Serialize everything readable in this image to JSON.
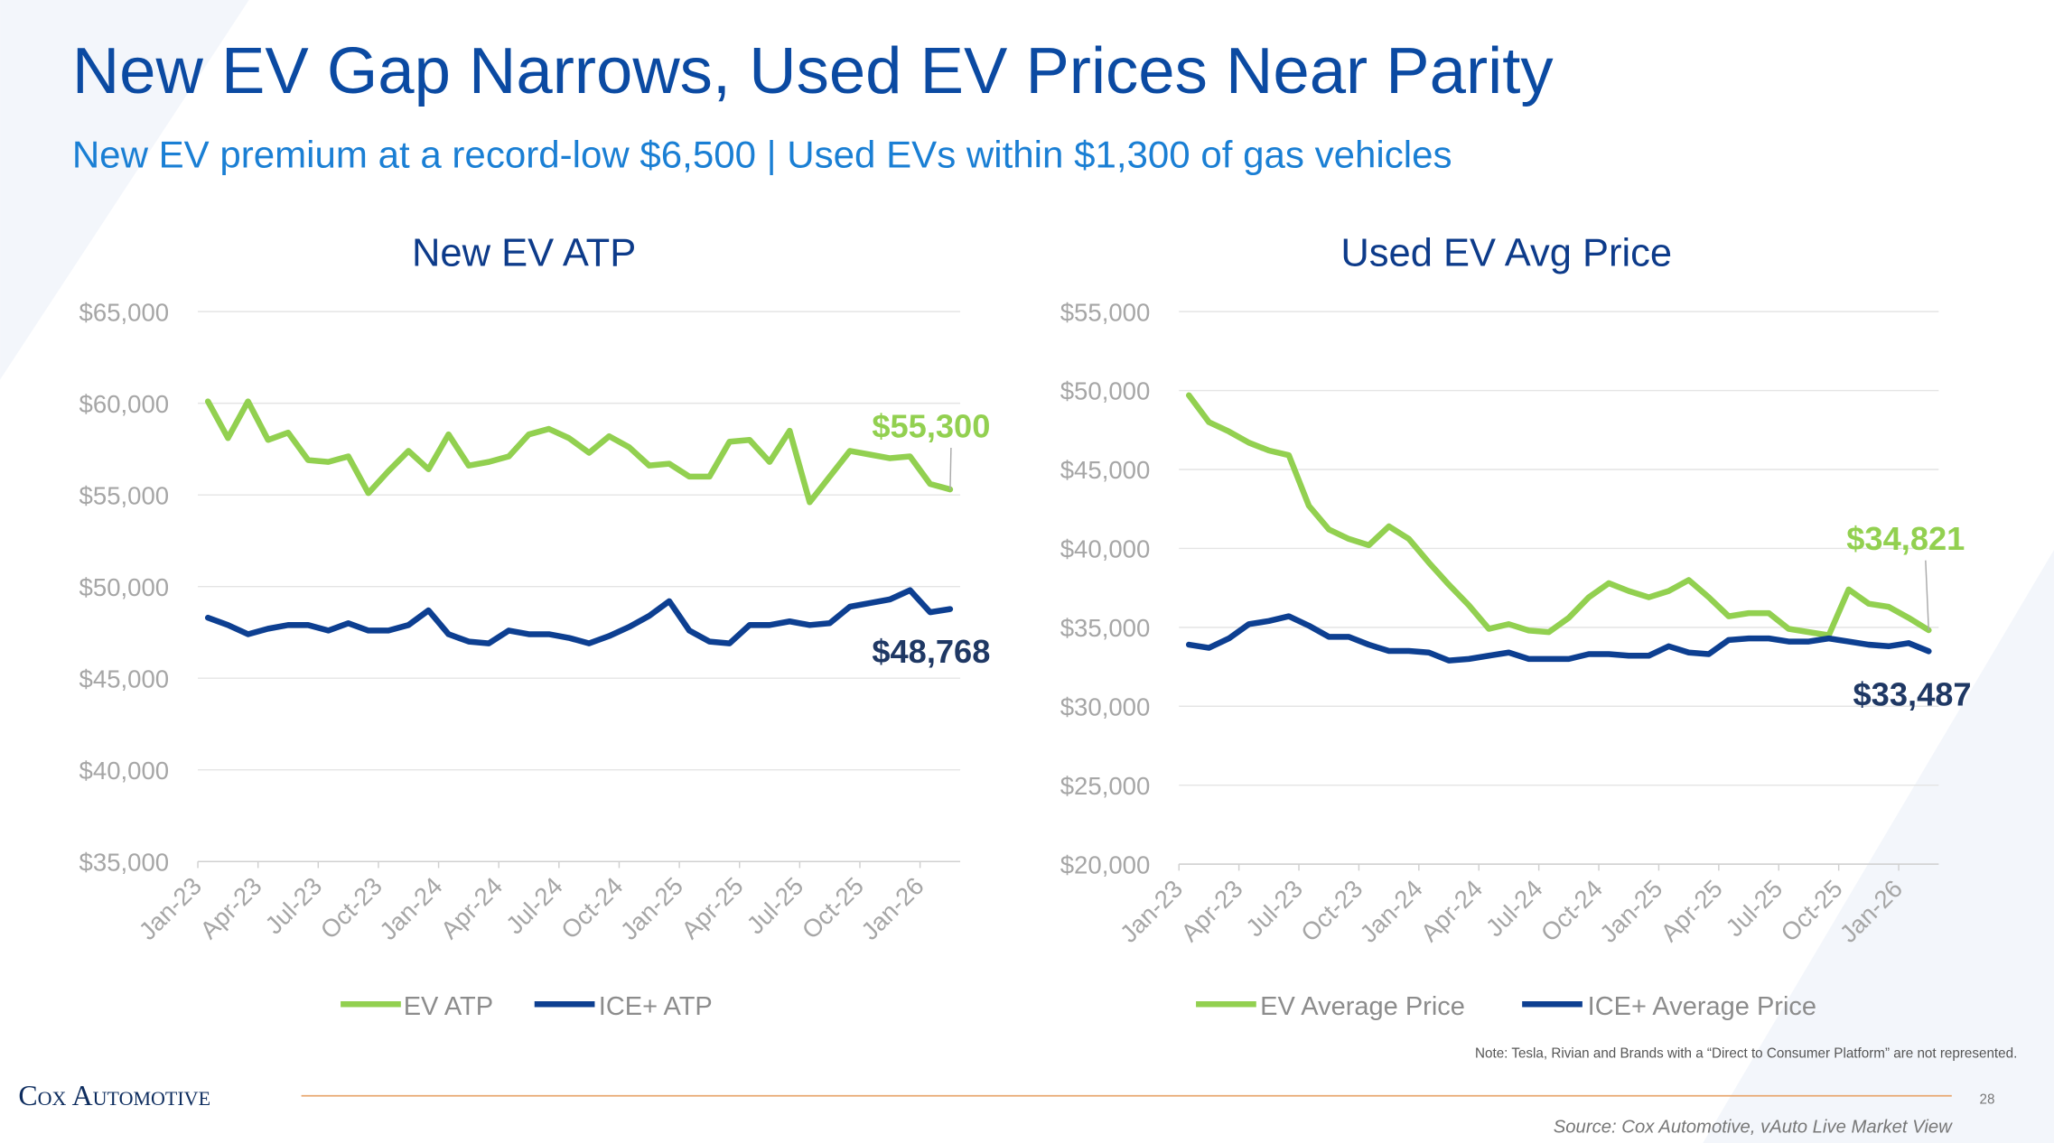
{
  "title": "New EV Gap Narrows, Used EV Prices Near Parity",
  "subtitle": "New EV premium at a record-low $6,500 | Used EVs within $1,300 of gas vehicles",
  "note": "Note: Tesla, Rivian and Brands with a “Direct to Consumer Platform” are not represented.",
  "logo": "Cox Automotive",
  "page_number": "28",
  "source": "Source: Cox Automotive, vAuto Live Market View",
  "chart_data": [
    {
      "type": "line",
      "title": "New EV ATP",
      "categories": [
        "Jan-23",
        null,
        null,
        "Apr-23",
        null,
        null,
        "Jul-23",
        null,
        null,
        "Oct-23",
        null,
        null,
        "Jan-24",
        null,
        null,
        "Apr-24",
        null,
        null,
        "Jul-24",
        null,
        null,
        "Oct-24",
        null,
        null,
        "Jan-25",
        null,
        null,
        "Apr-25",
        null,
        null,
        "Jul-25",
        null,
        null,
        "Oct-25",
        null,
        null,
        "Jan-26",
        null
      ],
      "ylim": [
        35000,
        65000
      ],
      "yticks": [
        {
          "value": 35000,
          "label": "$35,000"
        },
        {
          "value": 40000,
          "label": "$40,000"
        },
        {
          "value": 45000,
          "label": "$45,000"
        },
        {
          "value": 50000,
          "label": "$50,000"
        },
        {
          "value": 55000,
          "label": "$55,000"
        },
        {
          "value": 60000,
          "label": "$60,000"
        },
        {
          "value": 65000,
          "label": "$65,000"
        }
      ],
      "grid": true,
      "series": [
        {
          "name": "EV ATP",
          "color": "#92d050",
          "values": [
            60100,
            58100,
            60100,
            58000,
            58400,
            56900,
            56800,
            57100,
            55100,
            56300,
            57400,
            56400,
            58300,
            56600,
            56800,
            57100,
            58300,
            58600,
            58100,
            57300,
            58200,
            57600,
            56600,
            56700,
            56000,
            56000,
            57900,
            58000,
            56800,
            58500,
            54600,
            56000,
            57400,
            57200,
            57000,
            57100,
            55600,
            55300
          ],
          "value_labels": [
            null,
            null,
            null,
            null,
            null,
            null,
            null,
            null,
            null,
            null,
            null,
            null,
            null,
            null,
            null,
            null,
            null,
            null,
            null,
            null,
            null,
            null,
            null,
            null,
            null,
            null,
            null,
            null,
            null,
            null,
            null,
            null,
            null,
            null,
            null,
            null,
            null,
            "$55,300"
          ]
        },
        {
          "name": "ICE+ ATP",
          "color": "#0d3f91",
          "values": [
            48300,
            47900,
            47400,
            47700,
            47900,
            47900,
            47600,
            48000,
            47600,
            47600,
            47900,
            48700,
            47400,
            47000,
            46900,
            47600,
            47400,
            47400,
            47200,
            46900,
            47300,
            47800,
            48400,
            49200,
            47600,
            47000,
            46900,
            47900,
            47900,
            48100,
            47900,
            48000,
            48900,
            49100,
            49300,
            49800,
            48600,
            48768
          ],
          "value_labels": [
            null,
            null,
            null,
            null,
            null,
            null,
            null,
            null,
            null,
            null,
            null,
            null,
            null,
            null,
            null,
            null,
            null,
            null,
            null,
            null,
            null,
            null,
            null,
            null,
            null,
            null,
            null,
            null,
            null,
            null,
            null,
            null,
            null,
            null,
            null,
            null,
            null,
            "$48,768"
          ]
        }
      ]
    },
    {
      "type": "line",
      "title": "Used EV Avg Price",
      "categories": [
        "Jan-23",
        null,
        null,
        "Apr-23",
        null,
        null,
        "Jul-23",
        null,
        null,
        "Oct-23",
        null,
        null,
        "Jan-24",
        null,
        null,
        "Apr-24",
        null,
        null,
        "Jul-24",
        null,
        null,
        "Oct-24",
        null,
        null,
        "Jan-25",
        null,
        null,
        "Apr-25",
        null,
        null,
        "Jul-25",
        null,
        null,
        "Oct-25",
        null,
        null,
        "Jan-26",
        null
      ],
      "ylim": [
        20000,
        55000
      ],
      "yticks": [
        {
          "value": 20000,
          "label": "$20,000"
        },
        {
          "value": 25000,
          "label": "$25,000"
        },
        {
          "value": 30000,
          "label": "$30,000"
        },
        {
          "value": 35000,
          "label": "$35,000"
        },
        {
          "value": 40000,
          "label": "$40,000"
        },
        {
          "value": 45000,
          "label": "$45,000"
        },
        {
          "value": 50000,
          "label": "$50,000"
        },
        {
          "value": 55000,
          "label": "$55,000"
        }
      ],
      "grid": true,
      "series": [
        {
          "name": "EV Average Price",
          "color": "#92d050",
          "values": [
            49700,
            48000,
            47400,
            46700,
            46200,
            45900,
            42700,
            41200,
            40600,
            40200,
            41400,
            40600,
            39100,
            37700,
            36400,
            34900,
            35200,
            34800,
            34700,
            35600,
            36900,
            37800,
            37300,
            36900,
            37300,
            38000,
            36900,
            35700,
            35900,
            35900,
            34900,
            34700,
            34500,
            37400,
            36500,
            36300,
            35600,
            34821
          ],
          "value_labels": [
            null,
            null,
            null,
            null,
            null,
            null,
            null,
            null,
            null,
            null,
            null,
            null,
            null,
            null,
            null,
            null,
            null,
            null,
            null,
            null,
            null,
            null,
            null,
            null,
            null,
            null,
            null,
            null,
            null,
            null,
            null,
            null,
            null,
            null,
            null,
            null,
            null,
            "$34,821"
          ]
        },
        {
          "name": "ICE+ Average Price",
          "color": "#0d3f91",
          "values": [
            33900,
            33700,
            34300,
            35200,
            35400,
            35700,
            35100,
            34400,
            34400,
            33900,
            33500,
            33500,
            33400,
            32900,
            33000,
            33200,
            33400,
            33000,
            33000,
            33000,
            33300,
            33300,
            33200,
            33200,
            33800,
            33400,
            33300,
            34200,
            34300,
            34300,
            34100,
            34100,
            34300,
            34100,
            33900,
            33800,
            34000,
            33487
          ],
          "value_labels": [
            null,
            null,
            null,
            null,
            null,
            null,
            null,
            null,
            null,
            null,
            null,
            null,
            null,
            null,
            null,
            null,
            null,
            null,
            null,
            null,
            null,
            null,
            null,
            null,
            null,
            null,
            null,
            null,
            null,
            null,
            null,
            null,
            null,
            null,
            null,
            null,
            null,
            "$33,487"
          ]
        }
      ]
    }
  ]
}
